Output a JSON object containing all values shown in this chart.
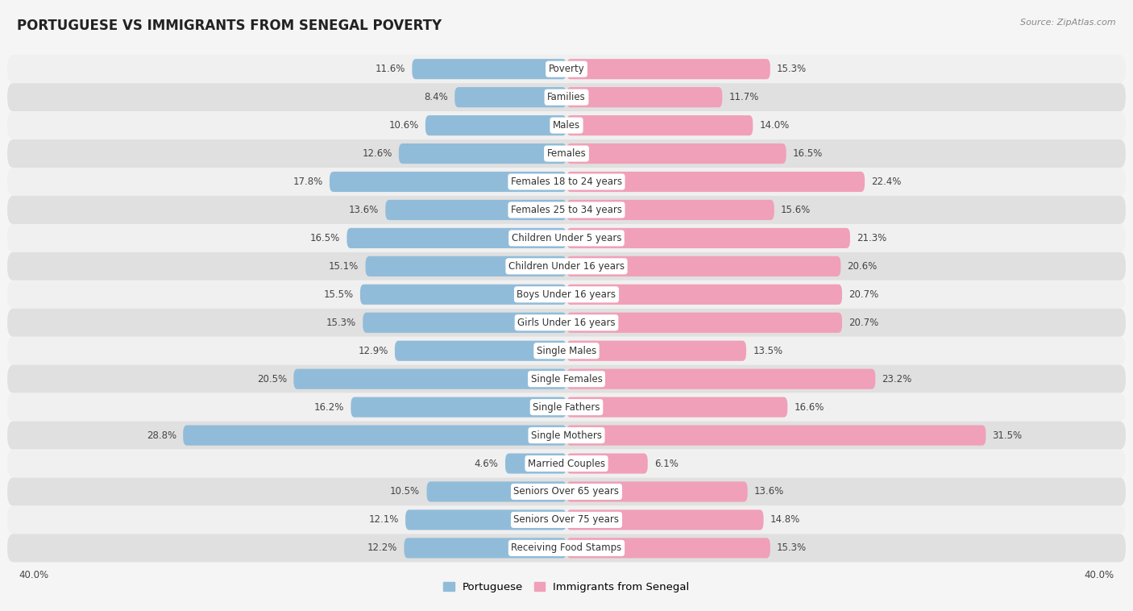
{
  "title": "PORTUGUESE VS IMMIGRANTS FROM SENEGAL POVERTY",
  "source": "Source: ZipAtlas.com",
  "categories": [
    "Poverty",
    "Families",
    "Males",
    "Females",
    "Females 18 to 24 years",
    "Females 25 to 34 years",
    "Children Under 5 years",
    "Children Under 16 years",
    "Boys Under 16 years",
    "Girls Under 16 years",
    "Single Males",
    "Single Females",
    "Single Fathers",
    "Single Mothers",
    "Married Couples",
    "Seniors Over 65 years",
    "Seniors Over 75 years",
    "Receiving Food Stamps"
  ],
  "portuguese": [
    11.6,
    8.4,
    10.6,
    12.6,
    17.8,
    13.6,
    16.5,
    15.1,
    15.5,
    15.3,
    12.9,
    20.5,
    16.2,
    28.8,
    4.6,
    10.5,
    12.1,
    12.2
  ],
  "senegal": [
    15.3,
    11.7,
    14.0,
    16.5,
    22.4,
    15.6,
    21.3,
    20.6,
    20.7,
    20.7,
    13.5,
    23.2,
    16.6,
    31.5,
    6.1,
    13.6,
    14.8,
    15.3
  ],
  "portuguese_color": "#91bcd9",
  "senegal_color": "#f0a0b8",
  "row_colors": [
    "#f0f0f0",
    "#e0e0e0"
  ],
  "background_color": "#f5f5f5",
  "xlim": 40.0,
  "bar_height": 0.72,
  "legend_portuguese": "Portuguese",
  "legend_senegal": "Immigrants from Senegal",
  "title_fontsize": 12,
  "label_fontsize": 8.5,
  "value_fontsize": 8.5,
  "source_fontsize": 8
}
